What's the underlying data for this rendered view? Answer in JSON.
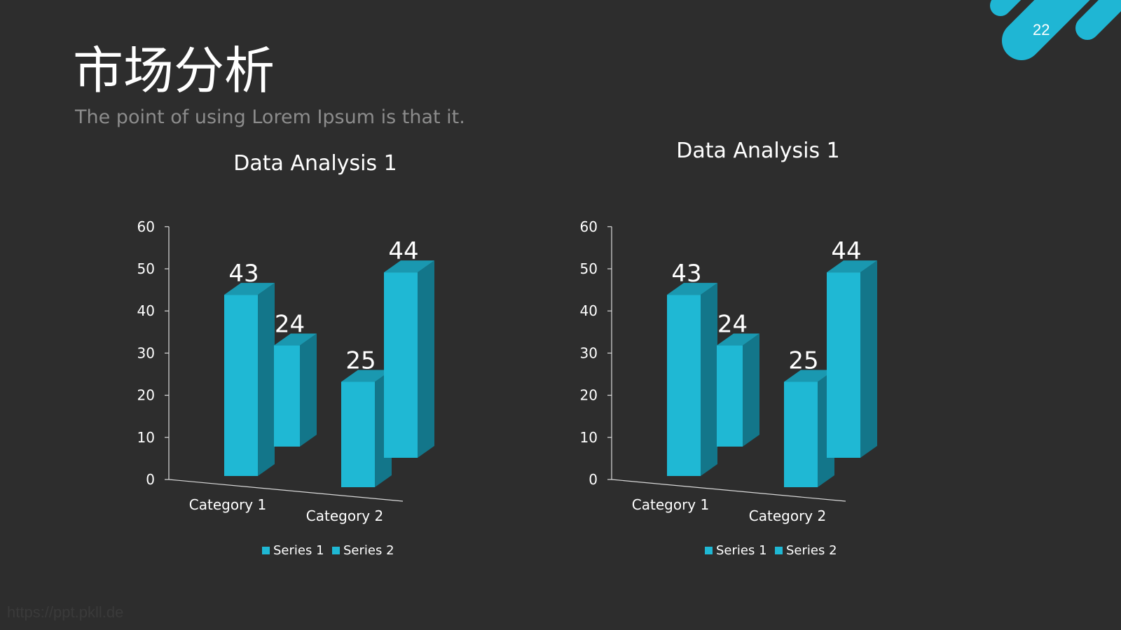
{
  "slide": {
    "title": "市场分析",
    "subtitle": "The point of using Lorem Ipsum is that it.",
    "page_number": "22",
    "watermark": "https://ppt.pkll.de"
  },
  "colors": {
    "background": "#2d2d2d",
    "accent": "#1fb6d4",
    "bar_front": "#1fb8d4",
    "bar_side": "#13768a",
    "bar_top": "#1a98b0",
    "axis": "#d9d9d9",
    "title_text": "#ffffff",
    "subtitle_text": "#8c8c8c"
  },
  "chart_data": [
    {
      "type": "bar",
      "title": "Data Analysis 1",
      "categories": [
        "Category 1",
        "Category 2"
      ],
      "series": [
        {
          "name": "Series 1",
          "values": [
            43,
            25
          ]
        },
        {
          "name": "Series 2",
          "values": [
            24,
            44
          ]
        }
      ],
      "ylim": [
        0,
        60
      ],
      "yticks": [
        "0",
        "10",
        "20",
        "30",
        "40",
        "50",
        "60"
      ],
      "legend": "bottom",
      "grid": false,
      "three_d": true
    },
    {
      "type": "bar",
      "title": "Data Analysis 1",
      "categories": [
        "Category 1",
        "Category 2"
      ],
      "series": [
        {
          "name": "Series 1",
          "values": [
            43,
            25
          ]
        },
        {
          "name": "Series 2",
          "values": [
            24,
            44
          ]
        }
      ],
      "ylim": [
        0,
        60
      ],
      "yticks": [
        "0",
        "10",
        "20",
        "30",
        "40",
        "50",
        "60"
      ],
      "legend": "bottom",
      "grid": false,
      "three_d": true
    }
  ]
}
